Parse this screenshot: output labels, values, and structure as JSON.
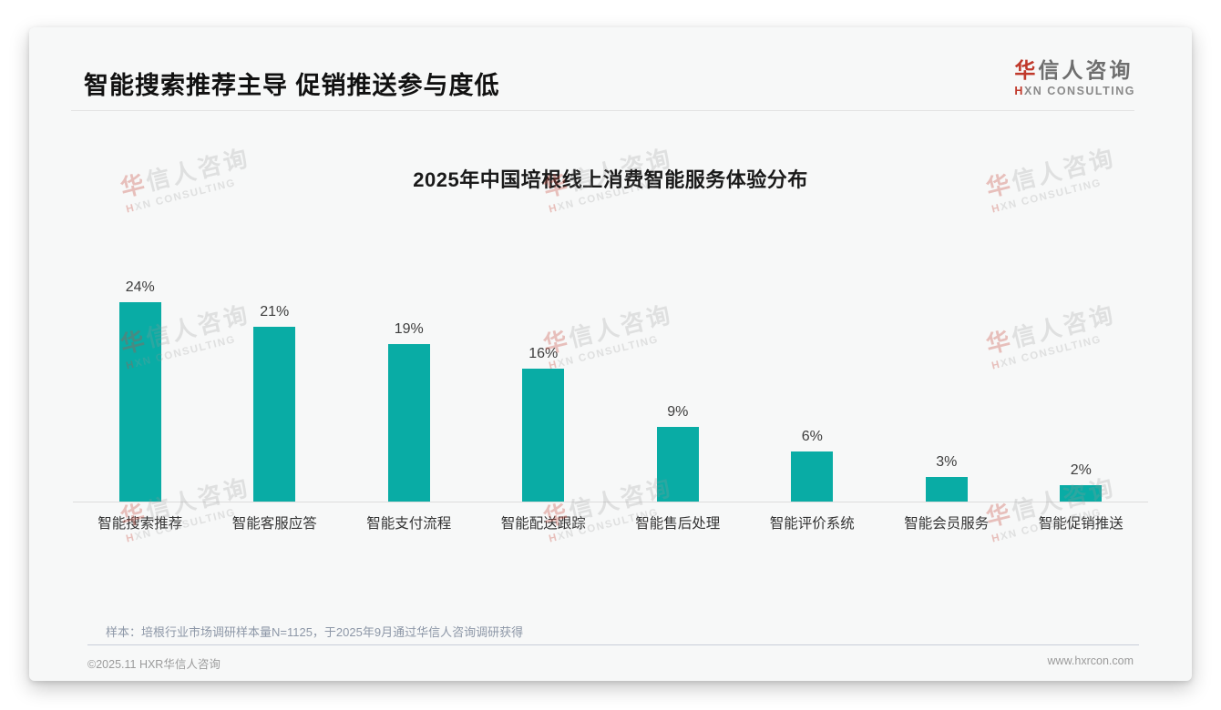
{
  "page": {
    "title": "智能搜索推荐主导 促销推送参与度低"
  },
  "logo": {
    "cn_first": "华",
    "cn_rest": "信人咨询",
    "en_first": "H",
    "en_rest": "XN CONSULTING"
  },
  "watermark": {
    "line1_first": "华",
    "line1_rest": "信人咨询",
    "line2_first": "H",
    "line2_rest": "XN CONSULTING"
  },
  "chart_data": {
    "type": "bar",
    "title": "2025年中国培根线上消费智能服务体验分布",
    "categories": [
      "智能搜索推荐",
      "智能客服应答",
      "智能支付流程",
      "智能配送跟踪",
      "智能售后处理",
      "智能评价系统",
      "智能会员服务",
      "智能促销推送"
    ],
    "values": [
      24,
      21,
      19,
      16,
      9,
      6,
      3,
      2
    ],
    "unit": "%",
    "value_label_position": "above_bar",
    "bar_color": "#09aca5",
    "ylim": [
      0,
      26
    ],
    "grid": false,
    "legend": false,
    "xlabel": "",
    "ylabel": ""
  },
  "footnote": "样本：培根行业市场调研样本量N=1125，于2025年9月通过华信人咨询调研获得",
  "footer": {
    "left": "©2025.11 HXR华信人咨询",
    "right": "www.hxrcon.com"
  }
}
